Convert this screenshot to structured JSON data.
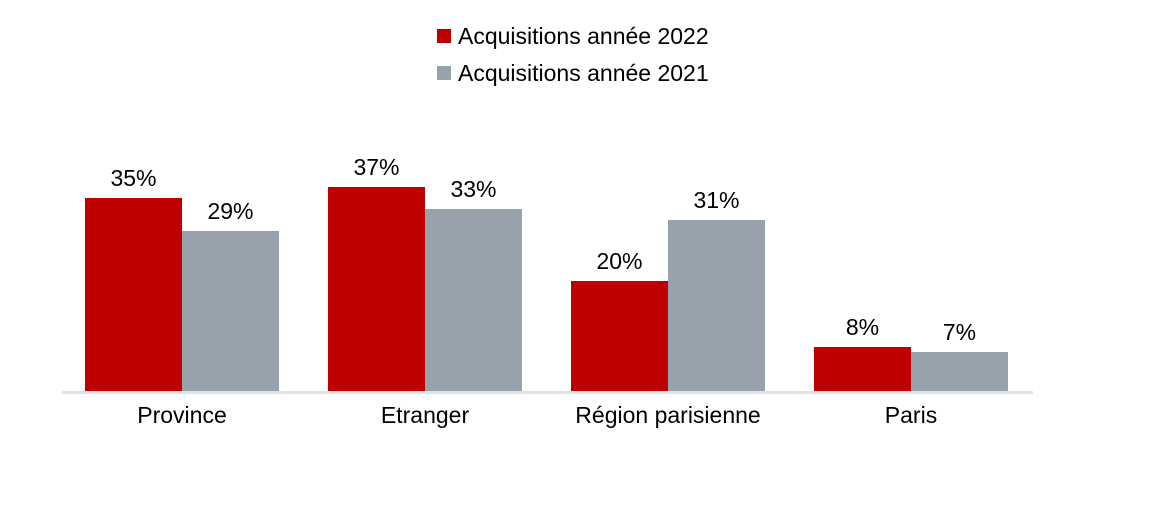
{
  "chart_data": {
    "type": "bar",
    "title": "",
    "xlabel": "",
    "ylabel": "",
    "categories": [
      "Province",
      "Etranger",
      "Région parisienne",
      "Paris"
    ],
    "series": [
      {
        "name": "Acquisitions année 2022",
        "color": "#c00000",
        "values": [
          35,
          37,
          20,
          8
        ],
        "labels": [
          "35%",
          "37%",
          "20%",
          "8%"
        ]
      },
      {
        "name": "Acquisitions année 2021",
        "color": "#98a2ac",
        "values": [
          29,
          33,
          31,
          7
        ],
        "labels": [
          "29%",
          "33%",
          "31%",
          "7%"
        ]
      }
    ],
    "ylim": [
      0,
      40
    ],
    "grid": false,
    "y_axis_visible": false,
    "data_labels": true,
    "legend_position": "top-center",
    "axis_line_color": "#dde2e8",
    "text_color": "#000000"
  }
}
